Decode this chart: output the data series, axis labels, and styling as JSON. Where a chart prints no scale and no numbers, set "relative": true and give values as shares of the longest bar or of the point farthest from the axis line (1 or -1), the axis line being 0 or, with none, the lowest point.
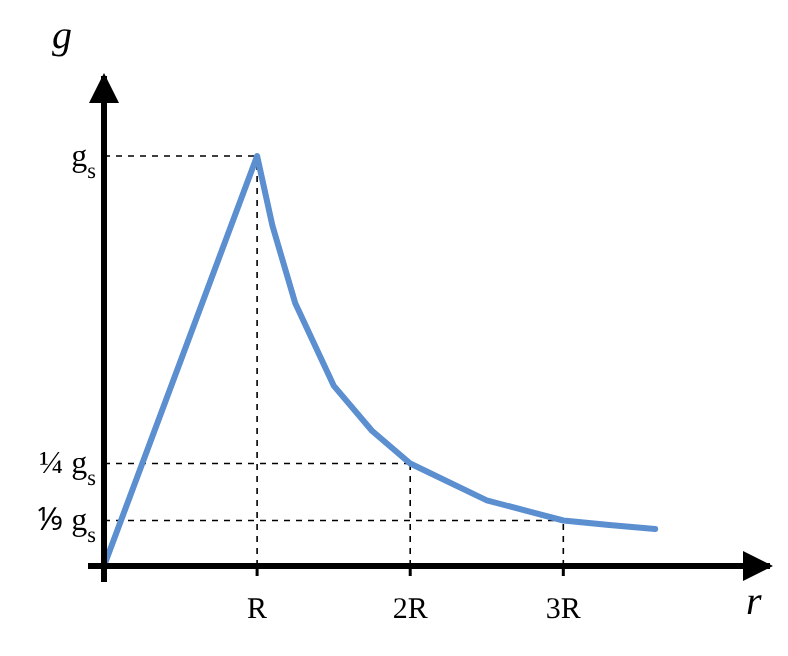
{
  "chart_data": {
    "type": "line",
    "xlabel": "r",
    "ylabel": "g",
    "x": [
      0,
      1,
      1.1,
      1.25,
      1.5,
      1.75,
      2,
      2.5,
      3,
      3.3,
      3.6
    ],
    "series": [
      {
        "color": "#5b8fd0",
        "values": [
          0,
          1,
          0.83,
          0.64,
          0.44,
          0.33,
          0.25,
          0.16,
          0.111,
          0.1,
          0.09
        ]
      }
    ],
    "xlim": [
      0,
      4.35
    ],
    "relative": true,
    "xticks": [
      {
        "value": 1,
        "label": "R"
      },
      {
        "value": 2,
        "label": "2R"
      },
      {
        "value": 3,
        "label": "3R"
      }
    ],
    "ref_lines": [
      {
        "axis": "y",
        "value": 1,
        "label": "g$_{s}$",
        "line_style": "dashed"
      },
      {
        "axis": "y",
        "value": 0.25,
        "label": "¼ g$_{s}$",
        "line_style": "dashed"
      },
      {
        "axis": "y",
        "value": 0.111,
        "label": "⅑ g$_{s}$",
        "line_style": "dashed"
      },
      {
        "axis": "x",
        "value": 1,
        "line_style": "dashed"
      },
      {
        "axis": "x",
        "value": 2,
        "line_style": "dashed"
      },
      {
        "axis": "x",
        "value": 3,
        "line_style": "dashed"
      }
    ],
    "marker": "none",
    "line_style": "solid"
  }
}
